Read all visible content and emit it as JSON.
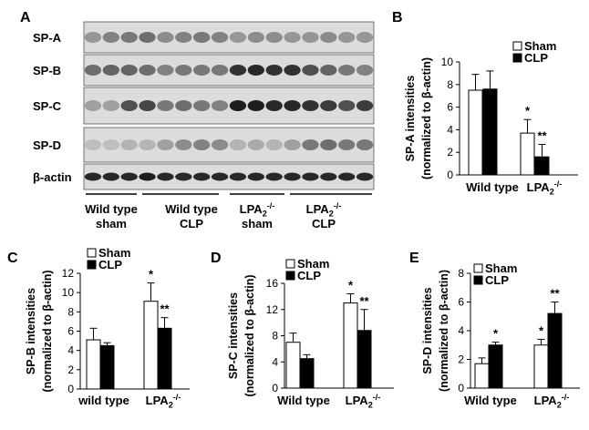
{
  "panels": {
    "A": "A",
    "B": "B",
    "C": "C",
    "D": "D",
    "E": "E"
  },
  "blot": {
    "rows": [
      "SP-A",
      "SP-B",
      "SP-C",
      "SP-D",
      "β-actin"
    ],
    "groups": [
      {
        "line1": "Wild type",
        "line2": "sham"
      },
      {
        "line1": "Wild type",
        "line2": "CLP"
      },
      {
        "line1": "LPA2-/-",
        "line2": "sham"
      },
      {
        "line1": "LPA2-/-",
        "line2": "CLP"
      }
    ]
  },
  "colors": {
    "sham": "#ffffff",
    "clp": "#000000"
  },
  "chart_data": [
    {
      "panel": "B",
      "type": "bar",
      "ylabel_line1": "SP-A intensities",
      "ylabel_line2": "(normalized to β-actin)",
      "ylim": [
        0,
        10
      ],
      "yticks": [
        0,
        2,
        4,
        6,
        8,
        10
      ],
      "categories": [
        "Wild type",
        "LPA2-/-"
      ],
      "series": [
        {
          "name": "Sham",
          "values": [
            7.5,
            3.7
          ],
          "errors": [
            1.4,
            1.2
          ],
          "sig": [
            "",
            "*"
          ]
        },
        {
          "name": "CLP",
          "values": [
            7.6,
            1.6
          ],
          "errors": [
            1.6,
            1.1
          ],
          "sig": [
            "",
            "**"
          ]
        }
      ],
      "legend": "top-right"
    },
    {
      "panel": "C",
      "type": "bar",
      "ylabel_line1": "SP-B intensities",
      "ylabel_line2": "(normalized to β-actin)",
      "ylim": [
        0,
        12
      ],
      "yticks": [
        0,
        2,
        4,
        6,
        8,
        10,
        12
      ],
      "categories": [
        "wild type",
        "LPA2-/-"
      ],
      "series": [
        {
          "name": "Sham",
          "values": [
            5.1,
            9.1
          ],
          "errors": [
            1.2,
            1.9
          ],
          "sig": [
            "",
            "*"
          ]
        },
        {
          "name": "CLP",
          "values": [
            4.5,
            6.3
          ],
          "errors": [
            0.3,
            1.1
          ],
          "sig": [
            "",
            "**"
          ]
        }
      ],
      "legend": "top-left"
    },
    {
      "panel": "D",
      "type": "bar",
      "ylabel_line1": "SP-C intensities",
      "ylabel_line2": "(normalized to β-actin)",
      "ylim": [
        0,
        16
      ],
      "yticks": [
        0,
        4,
        8,
        12,
        16
      ],
      "categories": [
        "Wild type",
        "LPA2-/-"
      ],
      "series": [
        {
          "name": "Sham",
          "values": [
            7.0,
            13.0
          ],
          "errors": [
            1.4,
            1.4
          ],
          "sig": [
            "",
            "*"
          ]
        },
        {
          "name": "CLP",
          "values": [
            4.5,
            8.8
          ],
          "errors": [
            0.6,
            3.2
          ],
          "sig": [
            "",
            "**"
          ]
        }
      ],
      "legend": "top-left"
    },
    {
      "panel": "E",
      "type": "bar",
      "ylabel_line1": "SP-D intensities",
      "ylabel_line2": "(normalized to β-actin)",
      "ylim": [
        0,
        8
      ],
      "yticks": [
        0,
        2,
        4,
        6,
        8
      ],
      "categories": [
        "Wild type",
        "LPA2-/-"
      ],
      "series": [
        {
          "name": "Sham",
          "values": [
            1.7,
            3.0
          ],
          "errors": [
            0.4,
            0.4
          ],
          "sig": [
            "",
            "*"
          ]
        },
        {
          "name": "CLP",
          "values": [
            3.0,
            5.2
          ],
          "errors": [
            0.2,
            0.8
          ],
          "sig": [
            "*",
            "**"
          ]
        }
      ],
      "legend": "top-left"
    }
  ]
}
